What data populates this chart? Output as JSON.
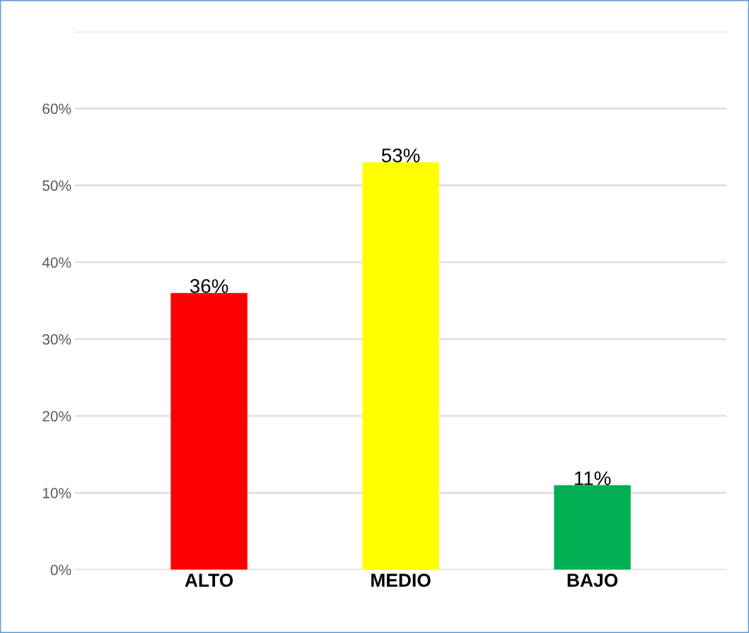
{
  "chart_data": {
    "type": "bar",
    "categories": [
      "ALTO",
      "MEDIO",
      "BAJO"
    ],
    "values": [
      36,
      53,
      11
    ],
    "colors": [
      "#ff0000",
      "#ffff00",
      "#00b050"
    ],
    "value_labels": [
      "36%",
      "53%",
      "11%"
    ],
    "ylim": [
      0,
      70
    ],
    "yticks": [
      {
        "value": 0,
        "label": "0%"
      },
      {
        "value": 10,
        "label": "10%"
      },
      {
        "value": 20,
        "label": "20%"
      },
      {
        "value": 30,
        "label": "30%"
      },
      {
        "value": 40,
        "label": "40%"
      },
      {
        "value": 50,
        "label": "50%"
      },
      {
        "value": 60,
        "label": "60%"
      },
      {
        "value": 70,
        "label": null
      }
    ],
    "grid": "y"
  }
}
